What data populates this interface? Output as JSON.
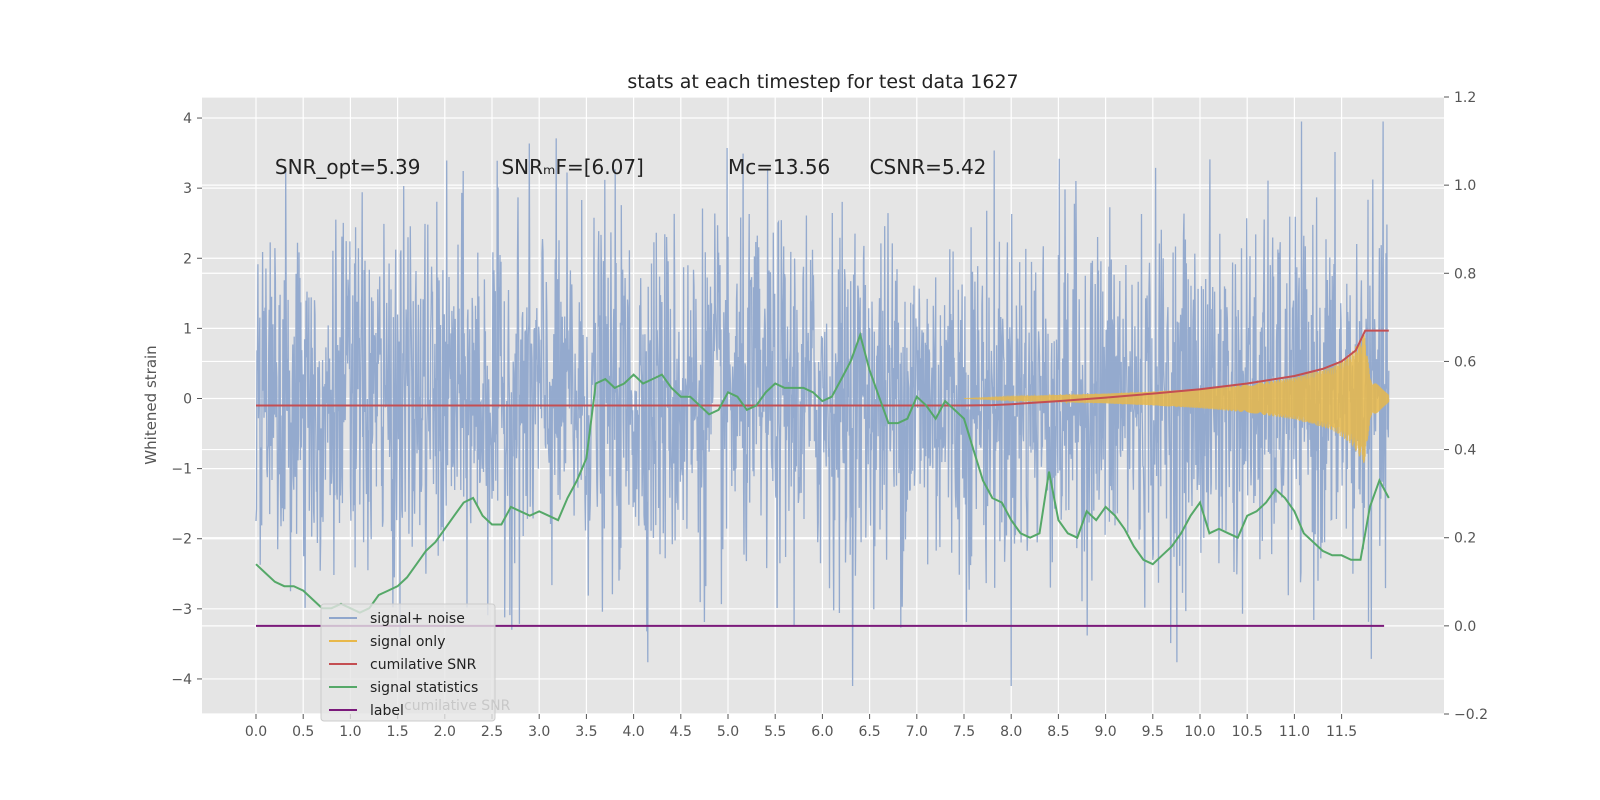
{
  "chart_data": {
    "type": "line",
    "title": "stats at each timestep for test data 1627",
    "ylabel": "Whitened strain",
    "xlim": [
      -0.6,
      12.6
    ],
    "ylim": [
      -4.5,
      4.3
    ],
    "y2lim": [
      -0.2,
      1.2
    ],
    "grid": true,
    "legend_position": "lower-left",
    "x_ticks": [
      "0.0",
      "0.5",
      "1.0",
      "1.5",
      "2.0",
      "2.5",
      "3.0",
      "3.5",
      "4.0",
      "4.5",
      "5.0",
      "5.5",
      "6.0",
      "6.5",
      "7.0",
      "7.5",
      "8.0",
      "8.5",
      "9.0",
      "9.5",
      "10.0",
      "10.5",
      "11.0",
      "11.5"
    ],
    "y_ticks": [
      "4",
      "3",
      "2",
      "1",
      "0",
      "−1",
      "−2",
      "−3",
      "−4"
    ],
    "y2_ticks": [
      "1.2",
      "1.0",
      "0.8",
      "0.6",
      "0.4",
      "0.2",
      "0.0",
      "−0.2"
    ],
    "annotations": [
      {
        "text": "SNR_opt=5.39",
        "x": 0.2,
        "y": 3.2
      },
      {
        "text": "SNRₘF=[6.07]",
        "x": 2.6,
        "y": 3.2
      },
      {
        "text": "Mᴄ=13.56",
        "x": 5.0,
        "y": 3.2
      },
      {
        "text": "CSNR=5.42",
        "x": 6.5,
        "y": 3.2
      }
    ],
    "series": [
      {
        "name": "signal+ noise",
        "axis": "left",
        "color": "#8fa6cc",
        "range": [
          -4.1,
          3.95
        ],
        "x_range": [
          0,
          12.0
        ],
        "typical_envelope": [
          -2.6,
          2.8
        ]
      },
      {
        "name": "signal only",
        "axis": "left",
        "color": "#e8b84a",
        "x": [
          7.5,
          8.0,
          8.5,
          9.0,
          9.5,
          10.0,
          10.5,
          11.0,
          11.4,
          11.6,
          11.7,
          11.75,
          11.8,
          12.0
        ],
        "amplitude": [
          0.0,
          0.03,
          0.05,
          0.07,
          0.1,
          0.14,
          0.2,
          0.3,
          0.45,
          0.65,
          0.85,
          0.95,
          0.3,
          0.05
        ]
      },
      {
        "name": "cumilative SNR",
        "axis": "right",
        "color": "#c44e52",
        "x": [
          0.0,
          7.5,
          7.8,
          8.0,
          8.5,
          9.0,
          9.5,
          10.0,
          10.5,
          11.0,
          11.3,
          11.5,
          11.65,
          11.75,
          11.8,
          12.0
        ],
        "y": [
          0.5,
          0.5,
          0.501,
          0.503,
          0.51,
          0.518,
          0.527,
          0.537,
          0.55,
          0.567,
          0.583,
          0.6,
          0.625,
          0.67,
          0.67,
          0.67
        ]
      },
      {
        "name": "signal statistics",
        "axis": "right",
        "color": "#55a868",
        "x": [
          0.0,
          0.1,
          0.2,
          0.3,
          0.4,
          0.5,
          0.6,
          0.7,
          0.8,
          0.9,
          1.0,
          1.1,
          1.2,
          1.3,
          1.4,
          1.5,
          1.6,
          1.7,
          1.8,
          1.9,
          2.0,
          2.1,
          2.2,
          2.3,
          2.4,
          2.5,
          2.6,
          2.7,
          2.8,
          2.9,
          3.0,
          3.1,
          3.2,
          3.3,
          3.4,
          3.5,
          3.6,
          3.7,
          3.8,
          3.9,
          4.0,
          4.1,
          4.2,
          4.3,
          4.4,
          4.5,
          4.6,
          4.7,
          4.8,
          4.9,
          5.0,
          5.1,
          5.2,
          5.3,
          5.4,
          5.5,
          5.6,
          5.7,
          5.8,
          5.9,
          6.0,
          6.1,
          6.2,
          6.3,
          6.4,
          6.5,
          6.6,
          6.7,
          6.8,
          6.9,
          7.0,
          7.1,
          7.2,
          7.3,
          7.4,
          7.5,
          7.6,
          7.7,
          7.8,
          7.9,
          8.0,
          8.1,
          8.2,
          8.3,
          8.4,
          8.5,
          8.6,
          8.7,
          8.8,
          8.9,
          9.0,
          9.1,
          9.2,
          9.3,
          9.4,
          9.5,
          9.6,
          9.7,
          9.8,
          9.9,
          10.0,
          10.1,
          10.2,
          10.3,
          10.4,
          10.5,
          10.6,
          10.7,
          10.8,
          10.9,
          11.0,
          11.1,
          11.2,
          11.3,
          11.4,
          11.5,
          11.6,
          11.7,
          11.8,
          11.9,
          12.0
        ],
        "y": [
          0.14,
          0.12,
          0.1,
          0.09,
          0.09,
          0.08,
          0.06,
          0.04,
          0.04,
          0.05,
          0.04,
          0.03,
          0.04,
          0.07,
          0.08,
          0.09,
          0.11,
          0.14,
          0.17,
          0.19,
          0.22,
          0.25,
          0.28,
          0.29,
          0.25,
          0.23,
          0.23,
          0.27,
          0.26,
          0.25,
          0.26,
          0.25,
          0.24,
          0.29,
          0.33,
          0.38,
          0.55,
          0.56,
          0.54,
          0.55,
          0.57,
          0.55,
          0.56,
          0.57,
          0.54,
          0.52,
          0.52,
          0.5,
          0.48,
          0.49,
          0.53,
          0.52,
          0.49,
          0.5,
          0.53,
          0.55,
          0.54,
          0.54,
          0.54,
          0.53,
          0.51,
          0.52,
          0.56,
          0.6,
          0.66,
          0.58,
          0.52,
          0.46,
          0.46,
          0.47,
          0.52,
          0.5,
          0.47,
          0.51,
          0.49,
          0.47,
          0.4,
          0.33,
          0.29,
          0.28,
          0.24,
          0.21,
          0.2,
          0.21,
          0.35,
          0.24,
          0.21,
          0.2,
          0.26,
          0.24,
          0.27,
          0.25,
          0.22,
          0.18,
          0.15,
          0.14,
          0.16,
          0.18,
          0.21,
          0.25,
          0.28,
          0.21,
          0.22,
          0.21,
          0.2,
          0.25,
          0.26,
          0.28,
          0.31,
          0.29,
          0.26,
          0.21,
          0.19,
          0.17,
          0.16,
          0.16,
          0.15,
          0.15,
          0.27,
          0.33,
          0.29
        ]
      },
      {
        "name": "label",
        "axis": "right",
        "color": "#7b1a7b",
        "x": [
          0.0,
          11.95
        ],
        "y": [
          0.0,
          0.0
        ]
      }
    ]
  },
  "legend": {
    "hidden_text": "cumilative SNR"
  },
  "colors": {
    "plot_background": "#e5e5e5",
    "grid": "#ffffff",
    "noise": "#8fa6cc",
    "signal": "#e8b84a",
    "cumulative": "#c44e52",
    "statistics": "#55a868",
    "label": "#7b1a7b"
  }
}
